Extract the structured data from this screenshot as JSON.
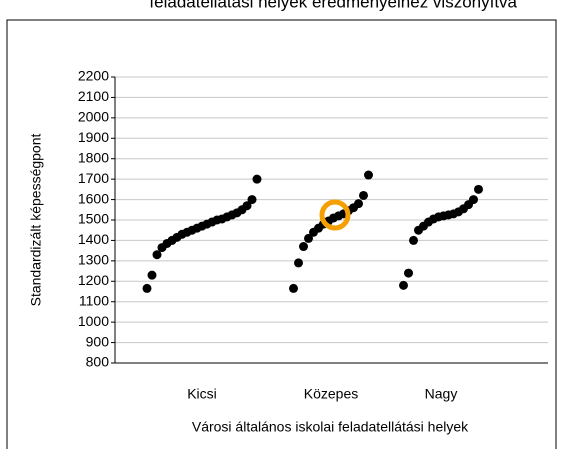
{
  "chart_data": {
    "type": "strip",
    "title": "feladatellátási helyek eredményeihez viszonyítva",
    "x_label": "Városi általános iskolai feladatellátási helyek",
    "y_label": "Standardizált képességpont",
    "categories": [
      "Kicsi",
      "Közepes",
      "Nagy"
    ],
    "color": "#000000",
    "series": [
      {
        "values": [
          1165,
          1230,
          1330,
          1365,
          1385,
          1400,
          1415,
          1430,
          1440,
          1450,
          1460,
          1470,
          1480,
          1490,
          1500,
          1505,
          1515,
          1525,
          1535,
          1550,
          1570,
          1600,
          1700
        ]
      },
      {
        "values": [
          1165,
          1290,
          1370,
          1410,
          1440,
          1460,
          1480,
          1495,
          1510,
          1520,
          1530,
          1545,
          1560,
          1580,
          1620,
          1720
        ]
      },
      {
        "values": [
          1180,
          1240,
          1400,
          1450,
          1470,
          1490,
          1505,
          1515,
          1520,
          1525,
          1530,
          1540,
          1555,
          1575,
          1600,
          1650
        ]
      }
    ],
    "ylim": [
      800,
      2200
    ],
    "yticks": [
      800,
      900,
      1000,
      1100,
      1200,
      1300,
      1400,
      1500,
      1600,
      1700,
      1800,
      1900,
      2000,
      2100,
      2200
    ],
    "grid": true
  }
}
